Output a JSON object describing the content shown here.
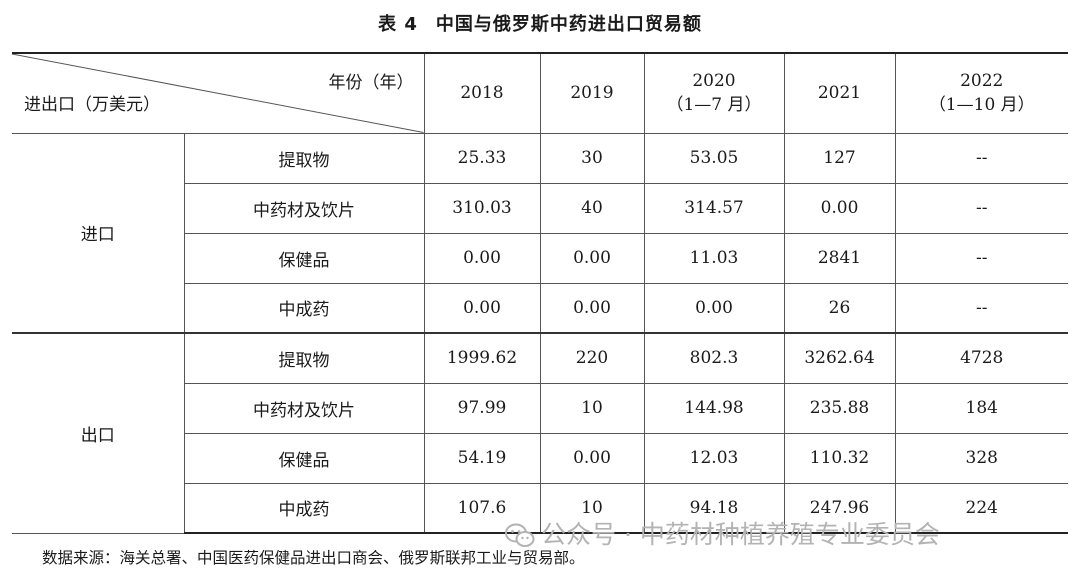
{
  "title": {
    "label": "表 4",
    "text": "中国与俄罗斯中药进出口贸易额"
  },
  "table": {
    "corner_top_right": "年份（年）",
    "corner_bottom_left": "进出口（万美元）",
    "years": [
      {
        "line1": "2018",
        "line2": ""
      },
      {
        "line1": "2019",
        "line2": ""
      },
      {
        "line1": "2020",
        "line2": "（1—7 月）"
      },
      {
        "line1": "2021",
        "line2": ""
      },
      {
        "line1": "2022",
        "line2": "（1—10 月）"
      }
    ],
    "groups": [
      {
        "name": "进口",
        "rows": [
          {
            "item": "提取物",
            "values": [
              "25.33",
              "30",
              "53.05",
              "127",
              "--"
            ]
          },
          {
            "item": "中药材及饮片",
            "values": [
              "310.03",
              "40",
              "314.57",
              "0.00",
              "--"
            ]
          },
          {
            "item": "保健品",
            "values": [
              "0.00",
              "0.00",
              "11.03",
              "2841",
              "--"
            ]
          },
          {
            "item": "中成药",
            "values": [
              "0.00",
              "0.00",
              "0.00",
              "26",
              "--"
            ]
          }
        ]
      },
      {
        "name": "出口",
        "rows": [
          {
            "item": "提取物",
            "values": [
              "1999.62",
              "220",
              "802.3",
              "3262.64",
              "4728"
            ]
          },
          {
            "item": "中药材及饮片",
            "values": [
              "97.99",
              "10",
              "144.98",
              "235.88",
              "184"
            ]
          },
          {
            "item": "保健品",
            "values": [
              "54.19",
              "0.00",
              "12.03",
              "110.32",
              "328"
            ]
          },
          {
            "item": "中成药",
            "values": [
              "107.6",
              "10",
              "94.18",
              "247.96",
              "224"
            ]
          }
        ]
      }
    ]
  },
  "footer": "数据来源：海关总署、中国医药保健品进出口商会、俄罗斯联邦工业与贸易部。",
  "watermark": {
    "text": "公众号 · 中药材种植养殖专业委员会",
    "icon": "wechat-icon"
  }
}
